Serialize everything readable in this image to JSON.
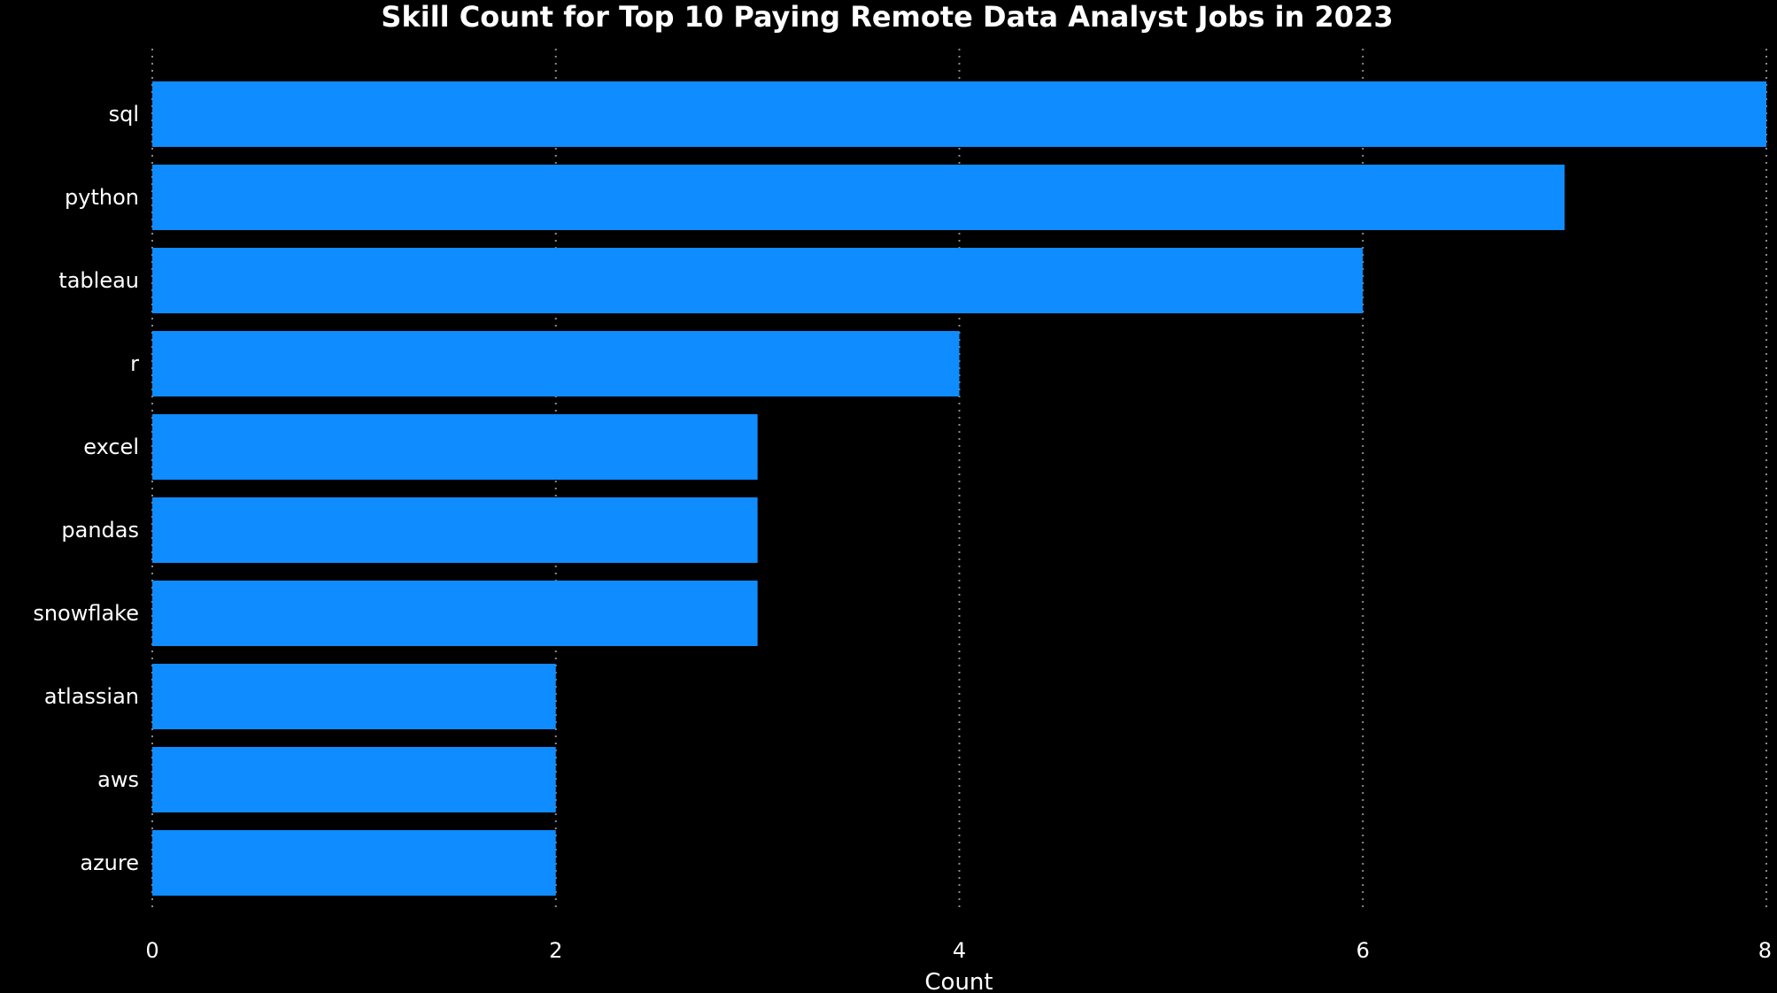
{
  "chart_data": {
    "type": "bar",
    "orientation": "horizontal",
    "title": "Skill Count for Top 10 Paying Remote Data Analyst Jobs in 2023",
    "xlabel": "Count",
    "ylabel": "",
    "categories": [
      "sql",
      "python",
      "tableau",
      "r",
      "excel",
      "pandas",
      "snowflake",
      "atlassian",
      "aws",
      "azure"
    ],
    "values": [
      8,
      7,
      6,
      4,
      3,
      3,
      3,
      2,
      2,
      2
    ],
    "xlim": [
      0,
      8
    ],
    "xticks": [
      "0",
      "2",
      "4",
      "6",
      "8"
    ],
    "grid": "vertical dotted",
    "legend": "none",
    "colors": {
      "bar": "#0f8cff",
      "background": "#000000",
      "text": "#ffffff",
      "grid": "#8a8a8a"
    }
  }
}
